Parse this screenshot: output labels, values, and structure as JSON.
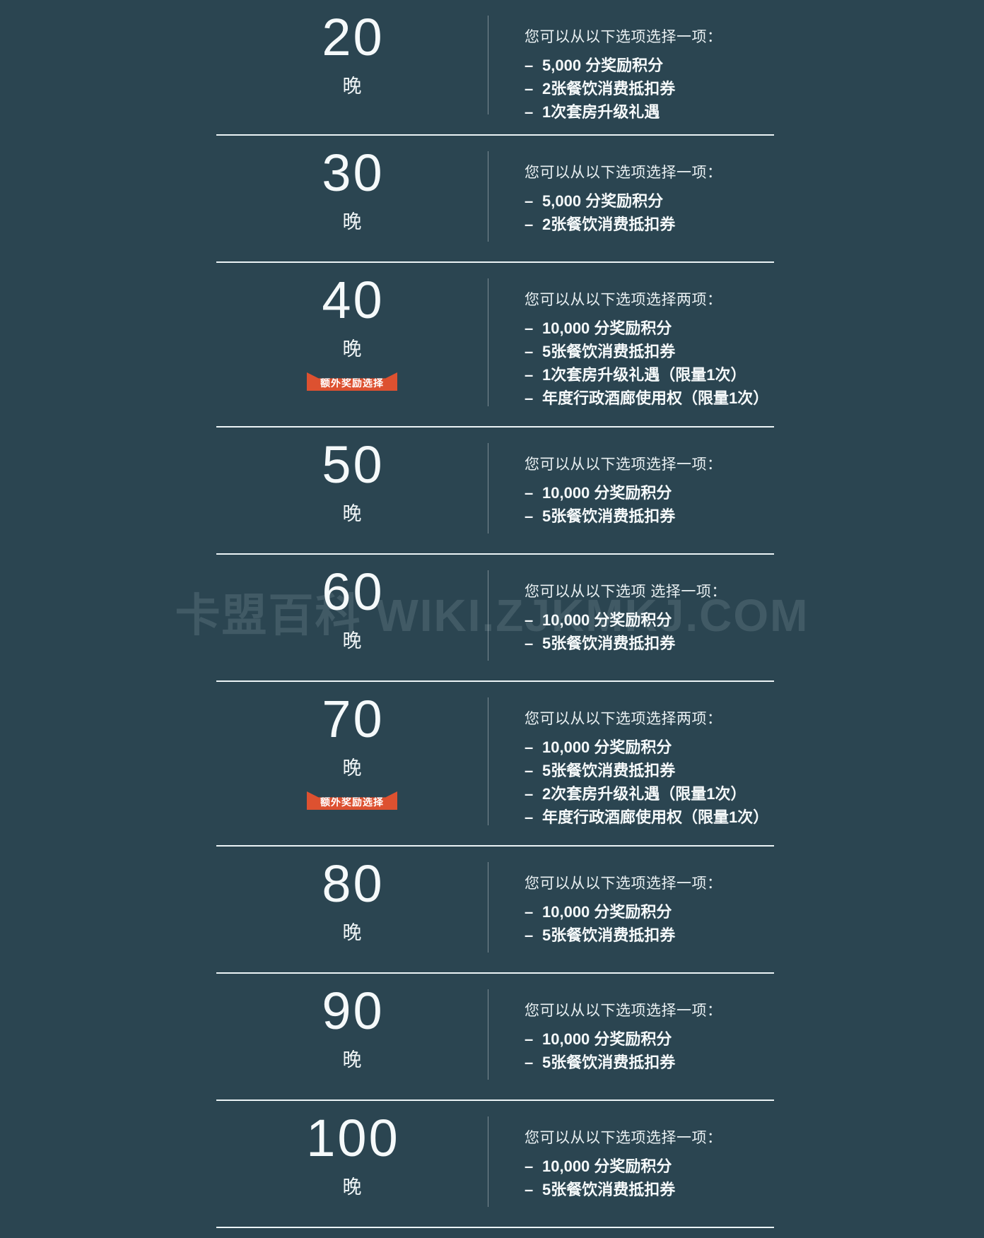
{
  "watermark": "卡盟百科 WIKI.ZJKMKJ.COM",
  "dash": "–",
  "unit": "晚",
  "colors": {
    "background": "#2b4551",
    "badge_orange": "#dd5130",
    "separator": "#ecf4f6",
    "text": "#f2f6f7"
  },
  "rows": [
    {
      "nights": "20",
      "unit": "晚",
      "header": "您可以从以下选项选择一项：",
      "items": [
        "5,000 分奖励积分",
        "2张餐饮消费抵扣券",
        "1次套房升级礼遇"
      ],
      "badge": null
    },
    {
      "nights": "30",
      "unit": "晚",
      "header": "您可以从以下选项选择一项：",
      "items": [
        "5,000 分奖励积分",
        "2张餐饮消费抵扣券"
      ],
      "badge": null
    },
    {
      "nights": "40",
      "unit": "晚",
      "header": "您可以从以下选项选择两项：",
      "items": [
        "10,000 分奖励积分",
        "5张餐饮消费抵扣券",
        "1次套房升级礼遇（限量1次）",
        "年度行政酒廊使用权（限量1次）"
      ],
      "badge": "额外奖励选择"
    },
    {
      "nights": "50",
      "unit": "晚",
      "header": "您可以从以下选项选择一项：",
      "items": [
        "10,000 分奖励积分",
        "5张餐饮消费抵扣券"
      ],
      "badge": null
    },
    {
      "nights": "60",
      "unit": "晚",
      "header": "您可以从以下选项 选择一项：",
      "items": [
        "10,000 分奖励积分",
        "5张餐饮消费抵扣券"
      ],
      "badge": null
    },
    {
      "nights": "70",
      "unit": "晚",
      "header": "您可以从以下选项选择两项：",
      "items": [
        "10,000 分奖励积分",
        "5张餐饮消费抵扣券",
        "2次套房升级礼遇（限量1次）",
        "年度行政酒廊使用权（限量1次）"
      ],
      "badge": "额外奖励选择"
    },
    {
      "nights": "80",
      "unit": "晚",
      "header": "您可以从以下选项选择一项：",
      "items": [
        "10,000 分奖励积分",
        "5张餐饮消费抵扣券"
      ],
      "badge": null
    },
    {
      "nights": "90",
      "unit": "晚",
      "header": "您可以从以下选项选择一项：",
      "items": [
        "10,000 分奖励积分",
        "5张餐饮消费抵扣券"
      ],
      "badge": null
    },
    {
      "nights": "100",
      "unit": "晚",
      "header": "您可以从以下选项选择一项：",
      "items": [
        "10,000 分奖励积分",
        "5张餐饮消费抵扣券"
      ],
      "badge": null
    }
  ]
}
